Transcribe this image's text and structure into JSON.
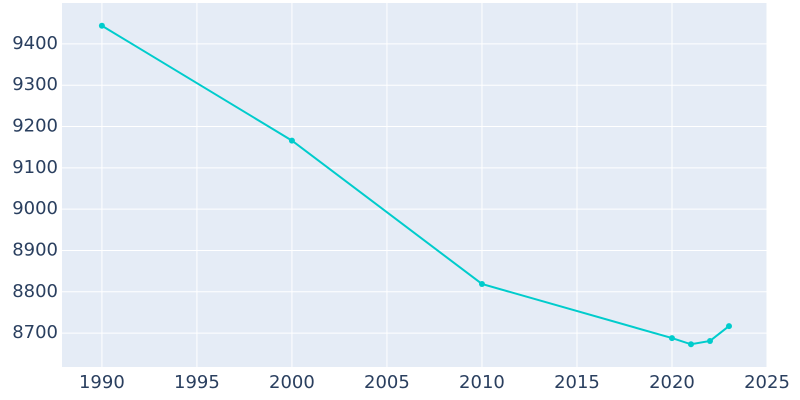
{
  "chart_data": {
    "type": "line",
    "x": [
      1990,
      2000,
      2010,
      2020,
      2021,
      2022,
      2023
    ],
    "series": [
      {
        "color": "#00cccc",
        "values": [
          9444,
          9166,
          8819,
          8688,
          8673,
          8681,
          8717
        ]
      }
    ],
    "xlim": [
      1987.9,
      2025
    ],
    "xticks": [
      1990,
      1995,
      2000,
      2005,
      2010,
      2015,
      2020,
      2025
    ],
    "ylim": [
      8618,
      9499
    ],
    "yticks": [
      8700,
      8800,
      8900,
      9000,
      9100,
      9200,
      9300,
      9400
    ],
    "grid": true,
    "background": "#e5ecf6"
  }
}
